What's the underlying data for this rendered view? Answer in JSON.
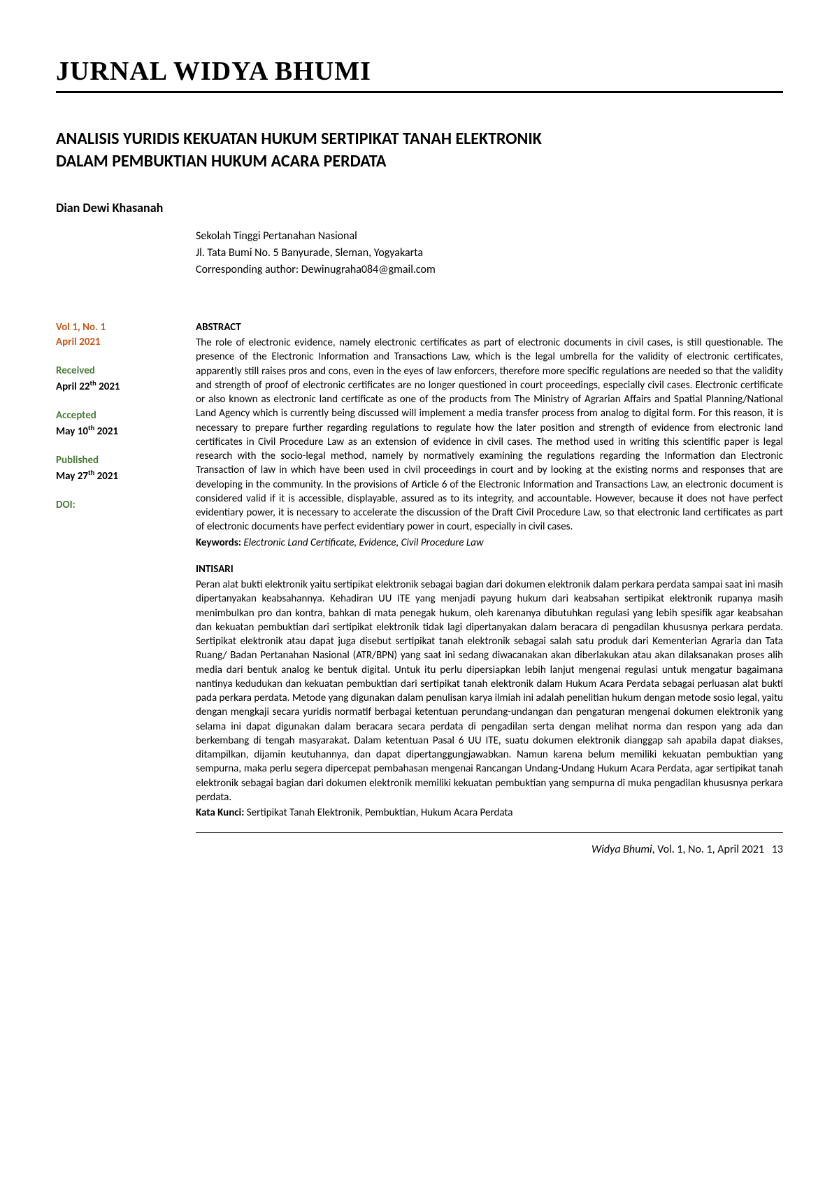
{
  "journal_name": "JURNAL WIDYA BHUMI",
  "title_line1": "ANALISIS YURIDIS KEKUATAN HUKUM SERTIPIKAT TANAH ELEKTRONIK",
  "title_line2": "DALAM PEMBUKTIAN HUKUM ACARA PERDATA",
  "author": "Dian Dewi Khasanah",
  "affiliation": {
    "institution": "Sekolah Tinggi Pertanahan Nasional",
    "address": "Jl. Tata Bumi No. 5 Banyurade, Sleman, Yogyakarta",
    "corresponding": "Corresponding author: Dewinugraha084@gmail.com"
  },
  "sidebar": {
    "vol_issue": "Vol 1, No. 1",
    "issue_date": "April 2021",
    "received_label": "Received",
    "received_date_pre": "April 22",
    "received_date_sup": "th",
    "received_date_post": " 2021",
    "accepted_label": "Accepted",
    "accepted_date_pre": "May 10",
    "accepted_date_sup": "th",
    "accepted_date_post": " 2021",
    "published_label": "Published",
    "published_date_pre": "May 27",
    "published_date_sup": "th",
    "published_date_post": " 2021",
    "doi_label": "DOI:"
  },
  "abstract": {
    "head": "ABSTRACT",
    "body": "The role of electronic evidence, namely electronic certificates as part of electronic documents in civil cases, is still questionable. The presence of the Electronic Information and Transactions Law, which is the legal umbrella for the validity of electronic certificates, apparently still raises pros and cons, even in the eyes of law enforcers, therefore more specific regulations are needed so that the validity and strength of proof of electronic certificates are no longer questioned in court proceedings, especially civil cases. Electronic certificate or also known as electronic land certificate as one of the products from The Ministry of Agrarian Affairs and Spatial Planning/National Land Agency which is currently being discussed will implement a media transfer process from analog to digital form. For this reason, it is necessary to prepare further regarding regulations to regulate how the later position and strength of evidence from electronic land certificates in Civil Procedure Law as an extension of evidence in civil cases. The method used in writing this scientific paper is legal research with the socio-legal method, namely by normatively examining the regulations regarding the Information dan Electronic Transaction of law in which have been used in civil proceedings in court and by looking at the existing norms and responses that are developing in the community. In the provisions of Article 6 of the Electronic Information and Transactions Law, an electronic document is considered valid if it is accessible, displayable, assured as to its integrity, and accountable. However, because it does not have perfect evidentiary power, it is necessary to accelerate the discussion of the Draft Civil Procedure Law, so that electronic land certificates as part of electronic documents have perfect evidentiary power in court, especially in civil cases.",
    "keywords_label": "Keywords",
    "keywords": "Electronic Land Certificate, Evidence, Civil Procedure Law"
  },
  "intisari": {
    "head": "INTISARI",
    "body": "Peran alat bukti elektronik yaitu sertipikat elektronik sebagai bagian dari dokumen elektronik dalam perkara perdata sampai saat ini masih dipertanyakan keabsahannya. Kehadiran UU ITE yang menjadi payung hukum dari keabsahan sertipikat elektronik rupanya masih menimbulkan pro dan kontra, bahkan di mata penegak hukum, oleh karenanya dibutuhkan regulasi yang lebih spesifik agar keabsahan dan kekuatan pembuktian dari sertipikat elektronik tidak lagi dipertanyakan dalam beracara di pengadilan khususnya perkara perdata. Sertipikat elektronik atau dapat juga disebut sertipikat tanah elektronik sebagai salah satu produk dari Kementerian Agraria dan Tata Ruang/ Badan Pertanahan Nasional (ATR/BPN) yang saat ini sedang diwacanakan akan diberlakukan atau akan dilaksanakan proses alih media dari bentuk analog ke bentuk digital. Untuk itu perlu dipersiapkan lebih lanjut mengenai regulasi untuk mengatur bagaimana nantinya kedudukan dan kekuatan pembuktian dari sertipikat tanah elektronik dalam Hukum Acara Perdata sebagai perluasan alat bukti pada perkara perdata. Metode yang digunakan dalam penulisan karya ilmiah ini adalah penelitian hukum dengan metode sosio legal, yaitu dengan mengkaji secara yuridis normatif berbagai ketentuan perundang-undangan dan pengaturan mengenai dokumen elektronik yang selama ini dapat digunakan dalam beracara secara perdata di pengadilan serta dengan melihat norma dan respon yang ada dan berkembang di tengah masyarakat. Dalam ketentuan Pasal 6 UU ITE, suatu dokumen elektronik dianggap sah apabila dapat diakses, ditampilkan, dijamin keutuhannya, dan dapat dipertanggungjawabkan. Namun karena belum memiliki kekuatan pembuktian yang sempurna, maka perlu segera dipercepat pembahasan mengenai Rancangan Undang-Undang Hukum Acara Perdata, agar sertipikat tanah elektronik sebagai bagian dari dokumen elektronik memiliki kekuatan pembuktian yang sempurna di muka pengadilan khususnya perkara perdata.",
    "keywords_label": "Kata Kunci",
    "keywords": "Sertipikat Tanah Elektronik, Pembuktian, Hukum Acara Perdata"
  },
  "footer": {
    "journal": "Widya Bhumi",
    "citation": ", Vol. 1, No. 1, April 2021",
    "page": "13"
  }
}
